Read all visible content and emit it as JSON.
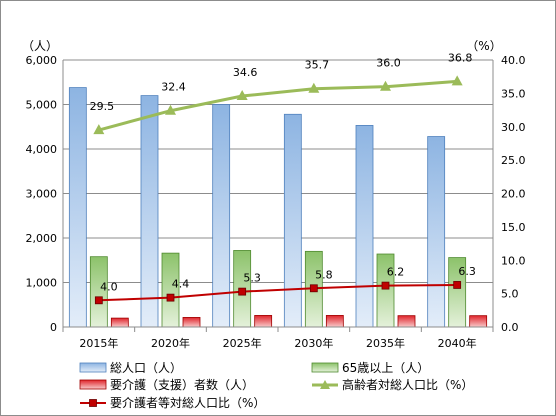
{
  "chart_data": {
    "type": "bar",
    "categories": [
      "2015年",
      "2020年",
      "2025年",
      "2030年",
      "2035年",
      "2040年"
    ],
    "y_left": {
      "unit": "（人）",
      "ylim": [
        0,
        6000
      ],
      "ticks": [
        "0",
        "1,000",
        "2,000",
        "3,000",
        "4,000",
        "5,000",
        "6,000"
      ]
    },
    "y_right": {
      "unit": "（%）",
      "ylim": [
        0,
        40
      ],
      "ticks": [
        "0.0",
        "5.0",
        "10.0",
        "15.0",
        "20.0",
        "25.0",
        "30.0",
        "35.0",
        "40.0"
      ]
    },
    "grid": true,
    "legend_position": "bottom",
    "series": [
      {
        "name": "総人口（人）",
        "kind": "bar",
        "axis": "left",
        "color": "#8db4e2",
        "values": [
          5380,
          5200,
          5000,
          4780,
          4530,
          4280
        ]
      },
      {
        "name": "65歳以上（人）",
        "kind": "bar",
        "axis": "left",
        "color": "#8cc26a",
        "values": [
          1580,
          1660,
          1720,
          1700,
          1640,
          1560
        ]
      },
      {
        "name": "要介護（支援）者数（人）",
        "kind": "bar",
        "axis": "left",
        "color": "#e0242b",
        "values": [
          200,
          215,
          260,
          260,
          255,
          255
        ]
      },
      {
        "name": "高齢者対総人口比（%）",
        "kind": "line",
        "axis": "right",
        "color": "#9bbb59",
        "marker": "triangle",
        "values": [
          29.5,
          32.4,
          34.6,
          35.7,
          36.0,
          36.8
        ],
        "labels": [
          "29.5",
          "32.4",
          "34.6",
          "35.7",
          "36.0",
          "36.8"
        ]
      },
      {
        "name": "要介護者等対総人口比（%）",
        "kind": "line",
        "axis": "right",
        "color": "#c00000",
        "marker": "square",
        "values": [
          4.0,
          4.4,
          5.3,
          5.8,
          6.2,
          6.3
        ],
        "labels": [
          "4.0",
          "4.4",
          "5.3",
          "5.8",
          "6.2",
          "6.3"
        ]
      }
    ]
  }
}
